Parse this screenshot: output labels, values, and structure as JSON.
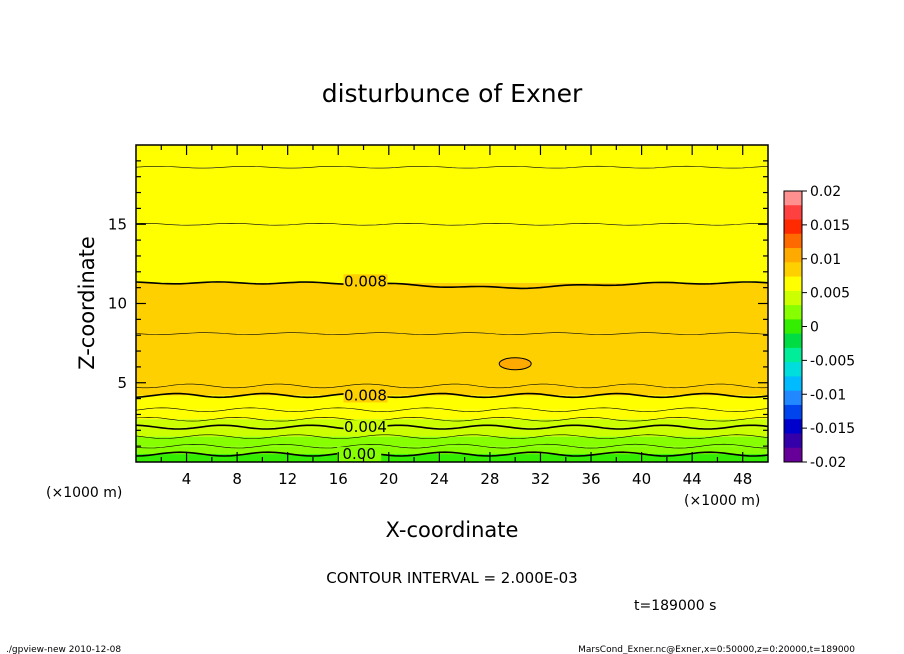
{
  "chart_data": {
    "type": "contour",
    "title": "disturbunce of Exner",
    "xlabel": "X-coordinate",
    "ylabel": "Z-coordinate",
    "x_units": "(×1000 m)",
    "y_units": "(×1000 m)",
    "xlim": [
      0,
      50
    ],
    "ylim": [
      0,
      20
    ],
    "x_ticks": [
      4,
      8,
      12,
      16,
      20,
      24,
      28,
      32,
      36,
      40,
      44,
      48
    ],
    "y_ticks": [
      5,
      10,
      15
    ],
    "contour_interval_text": "CONTOUR INTERVAL = 2.000E-03",
    "time_text": "t=189000 s",
    "contour_labels": [
      {
        "text": "0.008",
        "x": 18,
        "z": 11.4
      },
      {
        "text": "0.008",
        "x": 18,
        "z": 4.2
      },
      {
        "text": "0.004",
        "x": 18,
        "z": 2.2
      },
      {
        "text": "0.00",
        "x": 17.5,
        "z": 0.5
      }
    ],
    "bands": [
      {
        "zmin": 18.6,
        "zmax": 20,
        "level": 0.006
      },
      {
        "zmin": 15,
        "zmax": 18.6,
        "level": 0.007
      },
      {
        "zmin": 11.3,
        "zmax": 15,
        "level": 0.0075
      },
      {
        "zmin": 8.1,
        "zmax": 11.3,
        "level": 0.0085
      },
      {
        "zmin": 4.8,
        "zmax": 8.1,
        "level": 0.0095
      },
      {
        "zmin": 4.2,
        "zmax": 4.8,
        "level": 0.0085
      },
      {
        "zmin": 3.3,
        "zmax": 4.2,
        "level": 0.007
      },
      {
        "zmin": 2.7,
        "zmax": 3.3,
        "level": 0.006
      },
      {
        "zmin": 2.2,
        "zmax": 2.7,
        "level": 0.005
      },
      {
        "zmin": 1.6,
        "zmax": 2.2,
        "level": 0.004
      },
      {
        "zmin": 1.0,
        "zmax": 1.6,
        "level": 0.003
      },
      {
        "zmin": 0.5,
        "zmax": 1.0,
        "level": 0.002
      },
      {
        "zmin": 0,
        "zmax": 0.5,
        "level": 0.001
      }
    ],
    "blob": {
      "x": 30,
      "z": 6.2,
      "level": 0.0105
    },
    "colorbar": {
      "tick_labels": [
        "0.02",
        "0.015",
        "0.01",
        "0.005",
        "0",
        "-0.005",
        "-0.01",
        "-0.015",
        "-0.02"
      ],
      "colors": [
        "#ff9090",
        "#ff4040",
        "#ff2a00",
        "#ff6a00",
        "#ffaa00",
        "#ffd000",
        "#ffff00",
        "#ccff00",
        "#88ff00",
        "#33ee00",
        "#00dd44",
        "#00ee99",
        "#00dddd",
        "#00bbff",
        "#2288ff",
        "#0044ee",
        "#0000cc",
        "#3300aa",
        "#660099"
      ]
    }
  },
  "footer": {
    "left": "./gpview-new   2010-12-08",
    "right": "MarsCond_Exner.nc@Exner,x=0:50000,z=0:20000,t=189000"
  }
}
